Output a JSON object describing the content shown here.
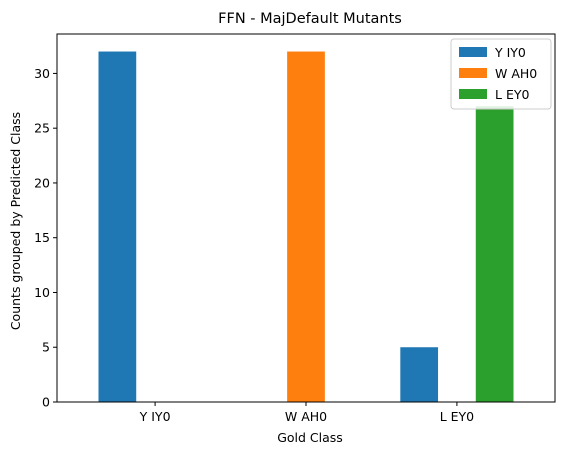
{
  "chart_data": {
    "type": "bar",
    "title": "FFN - MajDefault Mutants",
    "xlabel": "Gold Class",
    "ylabel": "Counts grouped by Predicted Class",
    "categories": [
      "Y IY0",
      "W AH0",
      "L EY0"
    ],
    "series": [
      {
        "name": "Y IY0",
        "color": "#1f77b4",
        "values": [
          32,
          0,
          5
        ]
      },
      {
        "name": "W AH0",
        "color": "#ff7f0e",
        "values": [
          0,
          32,
          0
        ]
      },
      {
        "name": "L EY0",
        "color": "#2ca02c",
        "values": [
          0,
          0,
          27
        ]
      }
    ],
    "ylim": [
      0,
      33.6
    ],
    "yticks": [
      0,
      5,
      10,
      15,
      20,
      25,
      30
    ],
    "ytick_labels": [
      "0",
      "5",
      "10",
      "15",
      "20",
      "25",
      "30"
    ],
    "grid": false,
    "legend_position": "top-right"
  }
}
